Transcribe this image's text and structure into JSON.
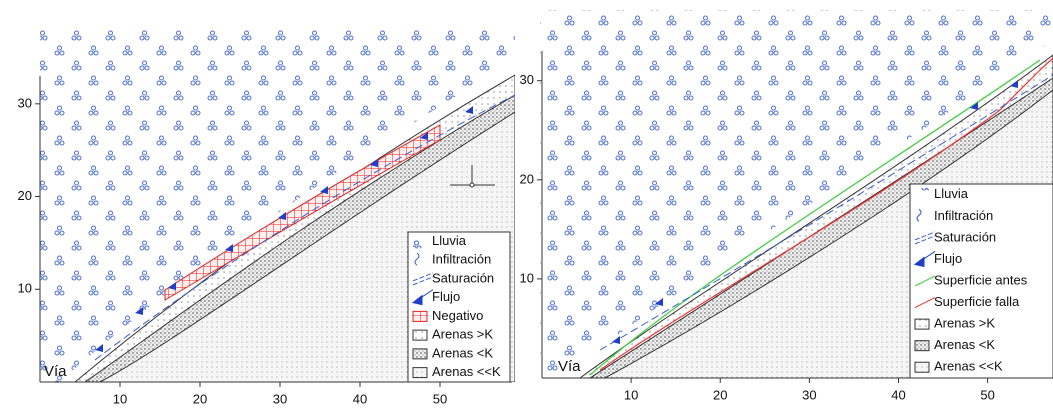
{
  "panels": [
    {
      "label": "Vía",
      "xlim": [
        0,
        59
      ],
      "ylim": [
        0,
        33
      ],
      "xticks": [
        10,
        20,
        30,
        40,
        50
      ],
      "yticks": [
        10,
        20,
        30
      ],
      "legend": [
        "Lluvia",
        "Infiltración",
        "Saturación",
        "Flujo",
        "Negativo",
        "Arenas >K",
        "Arenas <K",
        "Arenas <<K"
      ]
    },
    {
      "label": "Vía",
      "xlim": [
        0,
        57
      ],
      "ylim": [
        0,
        33
      ],
      "xticks": [
        10,
        20,
        30,
        40,
        50
      ],
      "yticks": [
        10,
        20,
        30
      ],
      "legend": [
        "Lluvia",
        "Infiltración",
        "Saturación",
        "Flujo",
        "Superficie antes",
        "Superficie falla",
        "Arenas >K",
        "Arenas <K",
        "Arenas <<K"
      ]
    }
  ]
}
